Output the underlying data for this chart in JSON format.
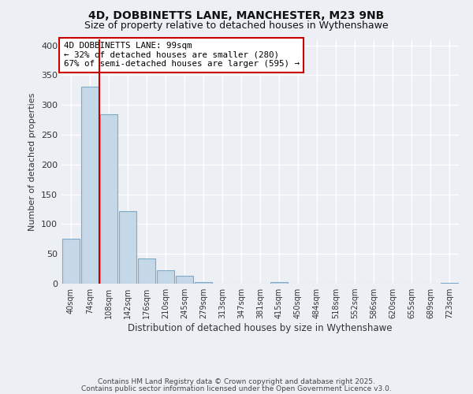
{
  "title": "4D, DOBBINETTS LANE, MANCHESTER, M23 9NB",
  "subtitle": "Size of property relative to detached houses in Wythenshawe",
  "xlabel": "Distribution of detached houses by size in Wythenshawe",
  "ylabel": "Number of detached properties",
  "bin_labels": [
    "40sqm",
    "74sqm",
    "108sqm",
    "142sqm",
    "176sqm",
    "210sqm",
    "245sqm",
    "279sqm",
    "313sqm",
    "347sqm",
    "381sqm",
    "415sqm",
    "450sqm",
    "484sqm",
    "518sqm",
    "552sqm",
    "586sqm",
    "620sqm",
    "655sqm",
    "689sqm",
    "723sqm"
  ],
  "bar_values": [
    75,
    330,
    285,
    122,
    42,
    23,
    13,
    2,
    0,
    0,
    0,
    3,
    0,
    0,
    0,
    0,
    0,
    0,
    0,
    0,
    1
  ],
  "bar_color": "#c5d8e8",
  "bar_edge_color": "#7aaac8",
  "vline_x": 1.5,
  "vline_color": "#cc0000",
  "ylim": [
    0,
    410
  ],
  "annotation_box_text": "4D DOBBINETTS LANE: 99sqm\n← 32% of detached houses are smaller (280)\n67% of semi-detached houses are larger (595) →",
  "annotation_box_color": "#cc0000",
  "footer_line1": "Contains HM Land Registry data © Crown copyright and database right 2025.",
  "footer_line2": "Contains public sector information licensed under the Open Government Licence v3.0.",
  "background_color": "#ecf0f5",
  "title_fontsize": 10,
  "subtitle_fontsize": 9
}
